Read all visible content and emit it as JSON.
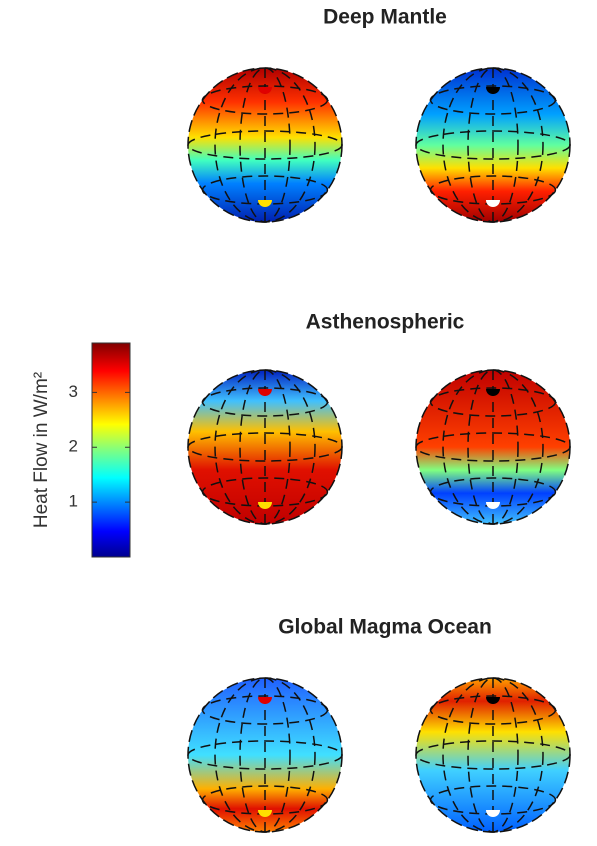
{
  "panels": [
    {
      "title": "Deep Mantle"
    },
    {
      "title": "Asthenospheric"
    },
    {
      "title": "Global Magma Ocean"
    }
  ],
  "colorbar": {
    "label": "Heat Flow in W/m²",
    "lim": [
      0,
      3.9
    ],
    "ticks": [
      1,
      2,
      3
    ]
  }
}
